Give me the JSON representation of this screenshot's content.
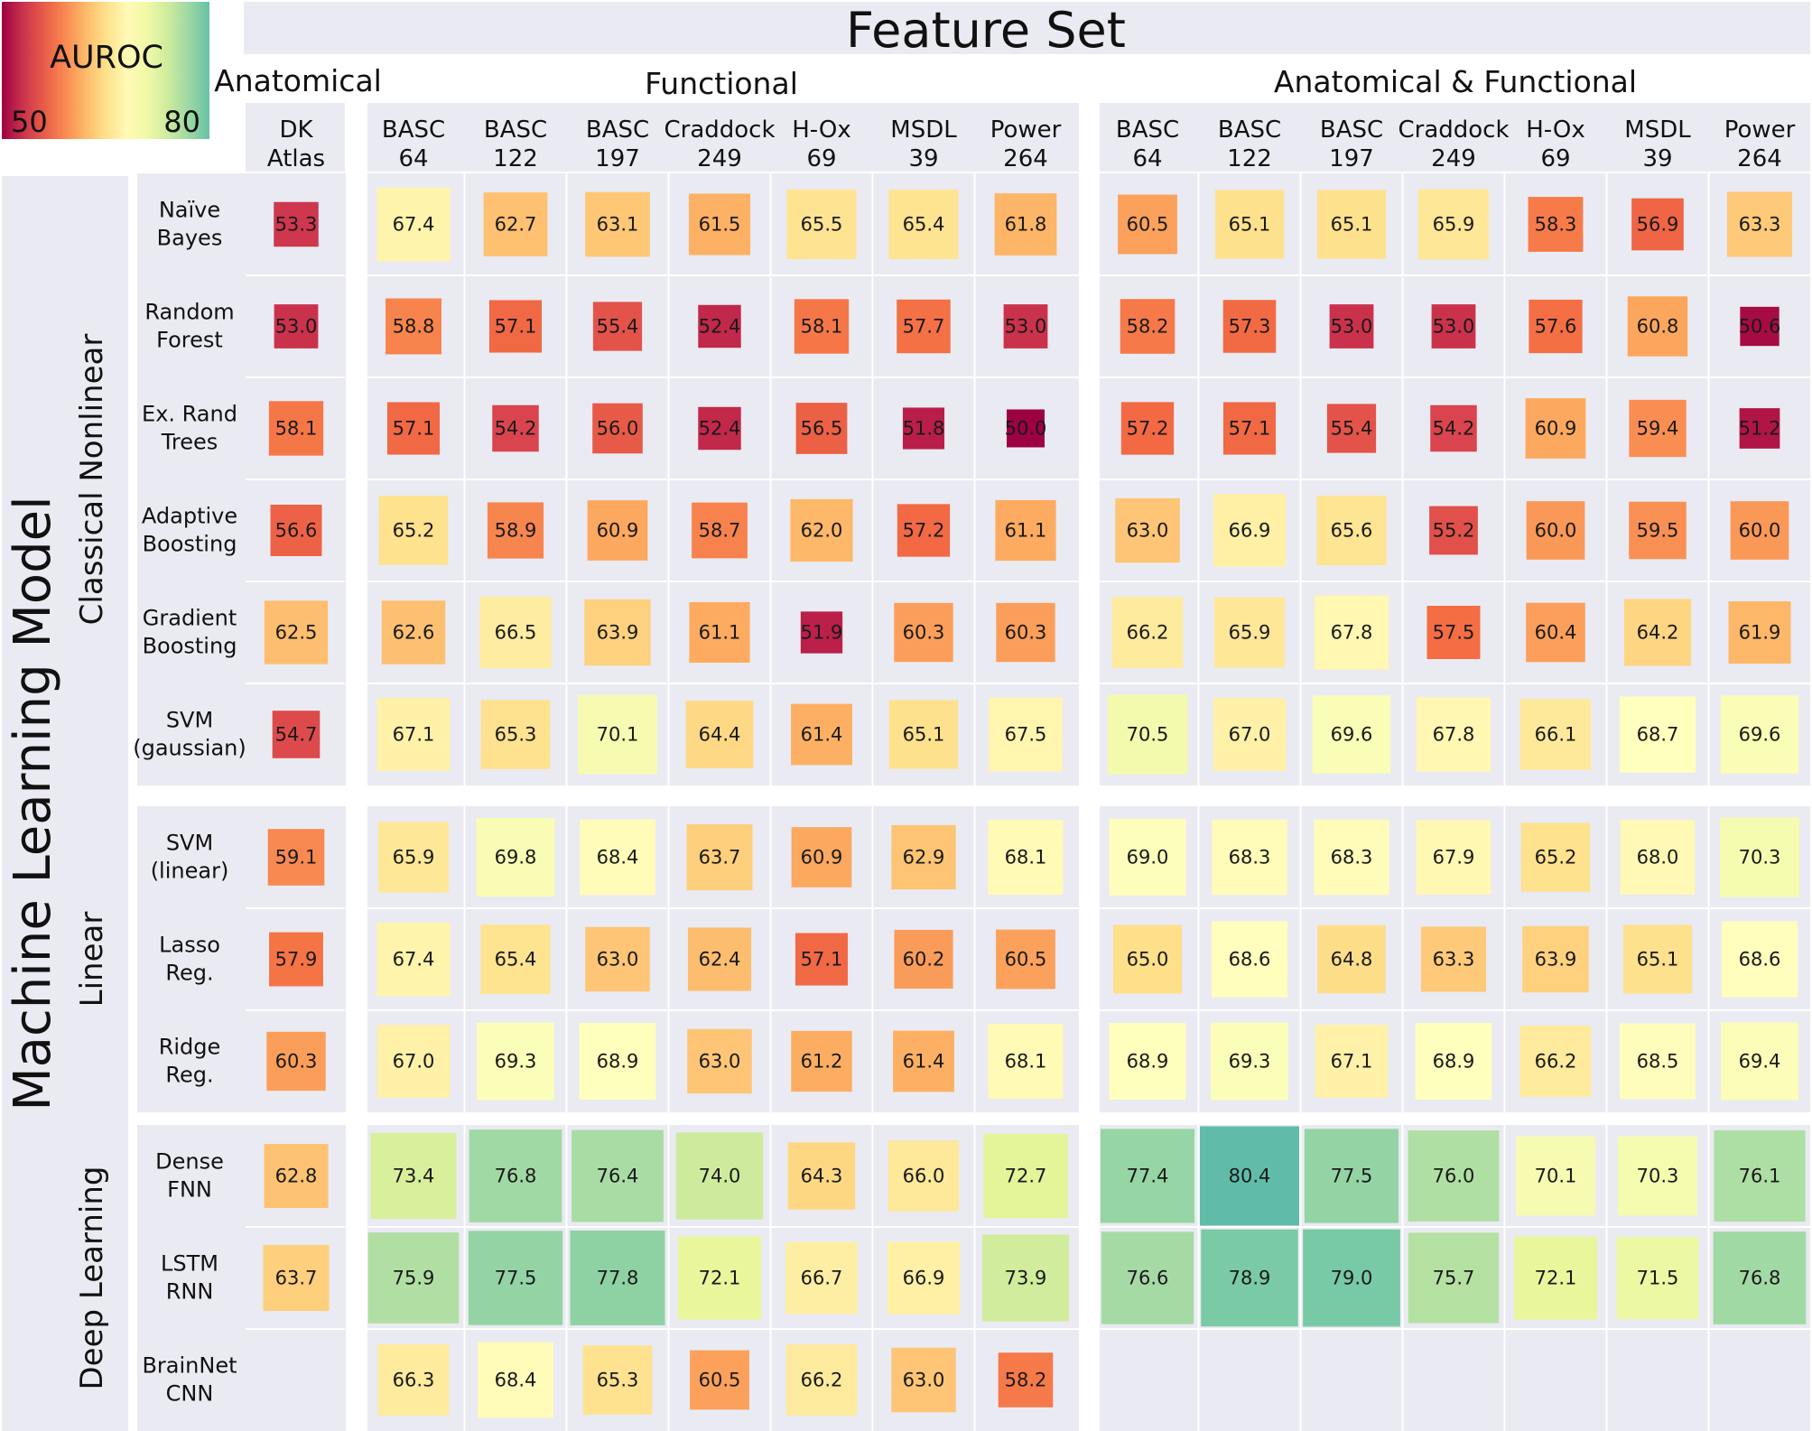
{
  "chart_data": {
    "type": "heatmap",
    "title": "Feature Set",
    "ylabel": "Machine Learning Model",
    "colorbar": {
      "label": "AUROC",
      "min": 50,
      "max": 80,
      "min_label": "50",
      "max_label": "80",
      "colormap": "Spectral",
      "placement": "top-left"
    },
    "cell_size_encodes_value": true,
    "groups": [
      {
        "name": "Anatomical",
        "columns": [
          "DK Atlas"
        ]
      },
      {
        "name": "Functional",
        "columns": [
          "BASC 64",
          "BASC 122",
          "BASC 197",
          "Craddock 249",
          "H-Ox 69",
          "MSDL 39",
          "Power 264"
        ]
      },
      {
        "name": "Anatomical & Functional",
        "columns": [
          "BASC 64",
          "BASC 122",
          "BASC 197",
          "Craddock 249",
          "H-Ox 69",
          "MSDL 39",
          "Power 264"
        ]
      }
    ],
    "column_labels": [
      [
        "DK",
        "Atlas"
      ],
      [
        "BASC",
        "64"
      ],
      [
        "BASC",
        "122"
      ],
      [
        "BASC",
        "197"
      ],
      [
        "Craddock",
        "249"
      ],
      [
        "H-Ox",
        "69"
      ],
      [
        "MSDL",
        "39"
      ],
      [
        "Power",
        "264"
      ],
      [
        "BASC",
        "64"
      ],
      [
        "BASC",
        "122"
      ],
      [
        "BASC",
        "197"
      ],
      [
        "Craddock",
        "249"
      ],
      [
        "H-Ox",
        "69"
      ],
      [
        "MSDL",
        "39"
      ],
      [
        "Power",
        "264"
      ]
    ],
    "row_groups": [
      {
        "name": "Classical Nonlinear",
        "rows": [
          {
            "label": [
              "Naïve",
              "Bayes"
            ],
            "values": [
              53.3,
              67.4,
              62.7,
              63.1,
              61.5,
              65.5,
              65.4,
              61.8,
              60.5,
              65.1,
              65.1,
              65.9,
              58.3,
              56.9,
              63.3
            ]
          },
          {
            "label": [
              "Random",
              "Forest"
            ],
            "values": [
              53.0,
              58.8,
              57.1,
              55.4,
              52.4,
              58.1,
              57.7,
              53.0,
              58.2,
              57.3,
              53.0,
              53.0,
              57.6,
              60.8,
              50.6
            ]
          },
          {
            "label": [
              "Ex. Rand",
              "Trees"
            ],
            "values": [
              58.1,
              57.1,
              54.2,
              56.0,
              52.4,
              56.5,
              51.8,
              50.0,
              57.2,
              57.1,
              55.4,
              54.2,
              60.9,
              59.4,
              51.2
            ]
          },
          {
            "label": [
              "Adaptive",
              "Boosting"
            ],
            "values": [
              56.6,
              65.2,
              58.9,
              60.9,
              58.7,
              62.0,
              57.2,
              61.1,
              63.0,
              66.9,
              65.6,
              55.2,
              60.0,
              59.5,
              60.0
            ]
          },
          {
            "label": [
              "Gradient",
              "Boosting"
            ],
            "values": [
              62.5,
              62.6,
              66.5,
              63.9,
              61.1,
              51.9,
              60.3,
              60.3,
              66.2,
              65.9,
              67.8,
              57.5,
              60.4,
              64.2,
              61.9
            ]
          },
          {
            "label": [
              "SVM",
              "(gaussian)"
            ],
            "values": [
              54.7,
              67.1,
              65.3,
              70.1,
              64.4,
              61.4,
              65.1,
              67.5,
              70.5,
              67.0,
              69.6,
              67.8,
              66.1,
              68.7,
              69.6
            ]
          }
        ]
      },
      {
        "name": "Linear",
        "rows": [
          {
            "label": [
              "SVM",
              "(linear)"
            ],
            "values": [
              59.1,
              65.9,
              69.8,
              68.4,
              63.7,
              60.9,
              62.9,
              68.1,
              69.0,
              68.3,
              68.3,
              67.9,
              65.2,
              68.0,
              70.3
            ]
          },
          {
            "label": [
              "Lasso",
              "Reg."
            ],
            "values": [
              57.9,
              67.4,
              65.4,
              63.0,
              62.4,
              57.1,
              60.2,
              60.5,
              65.0,
              68.6,
              64.8,
              63.3,
              63.9,
              65.1,
              68.6
            ]
          },
          {
            "label": [
              "Ridge",
              "Reg."
            ],
            "values": [
              60.3,
              67.0,
              69.3,
              68.9,
              63.0,
              61.2,
              61.4,
              68.1,
              68.9,
              69.3,
              67.1,
              68.9,
              66.2,
              68.5,
              69.4
            ]
          }
        ]
      },
      {
        "name": "Deep Learning",
        "rows": [
          {
            "label": [
              "Dense",
              "FNN"
            ],
            "values": [
              62.8,
              73.4,
              76.8,
              76.4,
              74.0,
              64.3,
              66.0,
              72.7,
              77.4,
              80.4,
              77.5,
              76.0,
              70.1,
              70.3,
              76.1
            ]
          },
          {
            "label": [
              "LSTM",
              "RNN"
            ],
            "values": [
              63.7,
              75.9,
              77.5,
              77.8,
              72.1,
              66.7,
              66.9,
              73.9,
              76.6,
              78.9,
              79.0,
              75.7,
              72.1,
              71.5,
              76.8
            ]
          },
          {
            "label": [
              "BrainNet",
              "CNN"
            ],
            "values": [
              null,
              66.3,
              68.4,
              65.3,
              60.5,
              66.2,
              63.0,
              58.2,
              null,
              null,
              null,
              null,
              null,
              null,
              null
            ]
          }
        ]
      }
    ]
  }
}
